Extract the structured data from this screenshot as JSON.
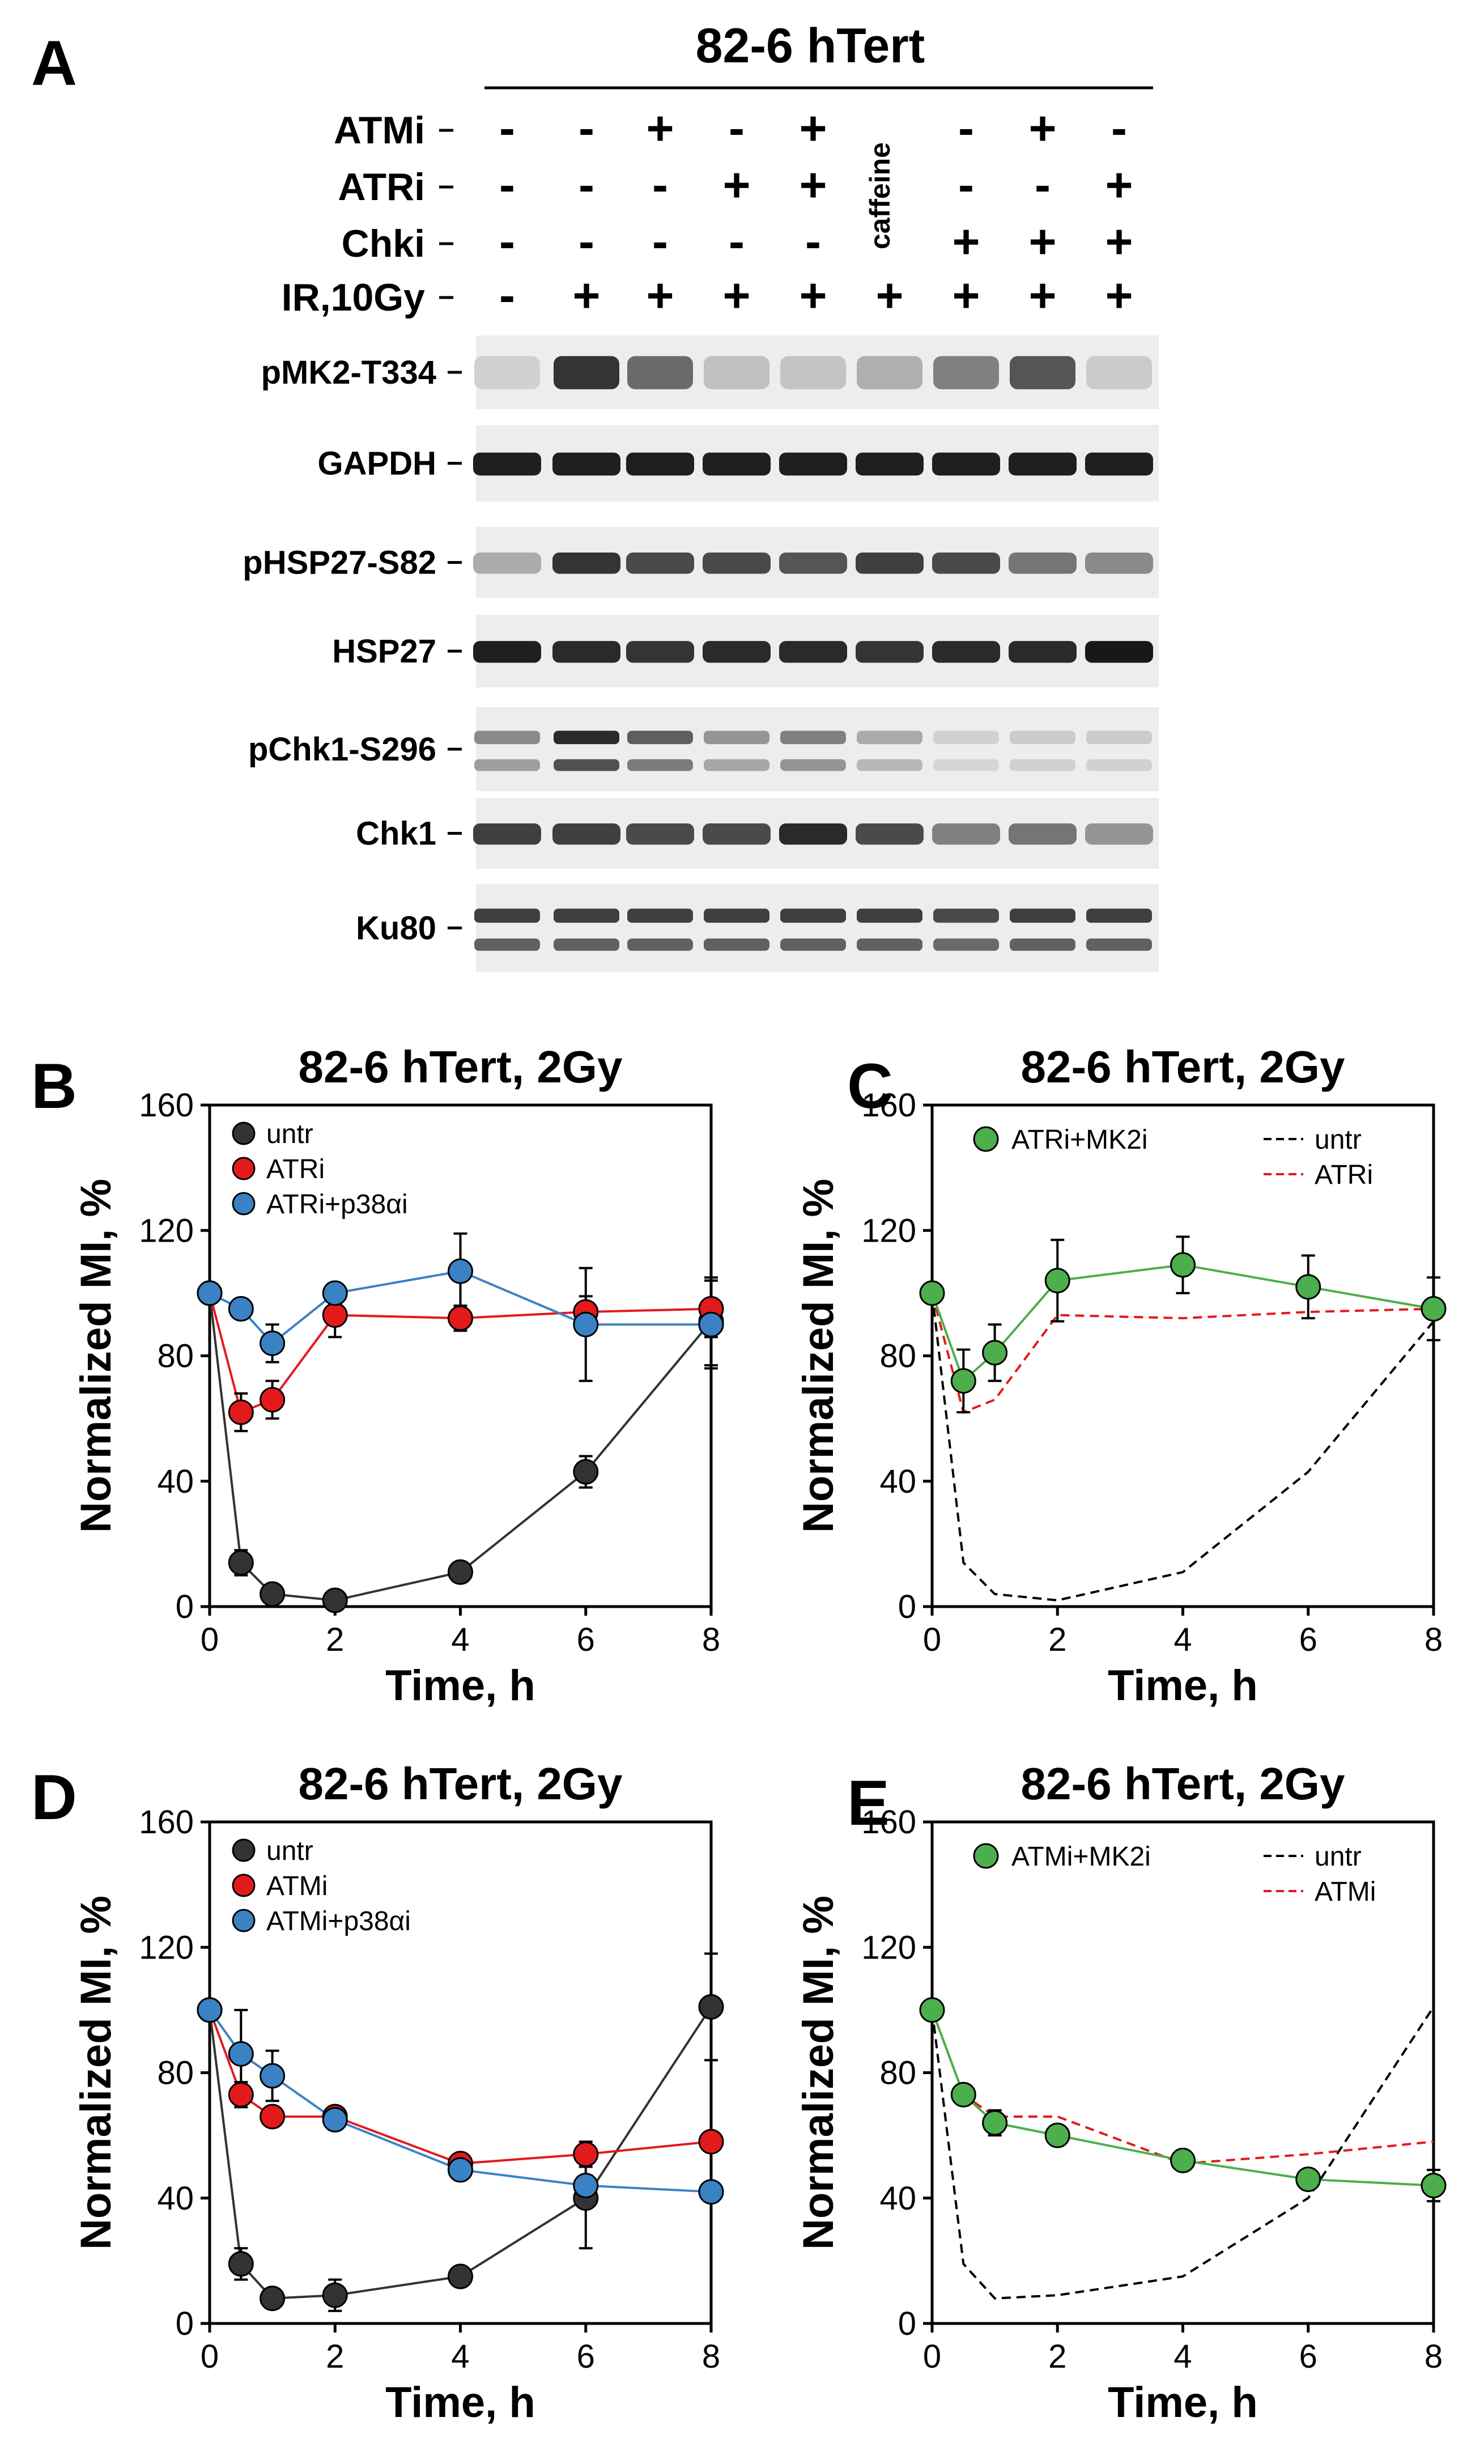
{
  "panel_a": {
    "letter": "A",
    "cell_line": "82-6 hTert",
    "treatment_rows": [
      {
        "label": "ATMi",
        "values": [
          "-",
          "-",
          "+",
          "-",
          "+",
          "",
          "-",
          "+",
          "-"
        ]
      },
      {
        "label": "ATRi",
        "values": [
          "-",
          "-",
          "-",
          "+",
          "+",
          "",
          "-",
          "-",
          "+"
        ]
      },
      {
        "label": "Chki",
        "values": [
          "-",
          "-",
          "-",
          "-",
          "-",
          "",
          "+",
          "+",
          "+"
        ]
      },
      {
        "label": "IR,10Gy",
        "values": [
          "-",
          "+",
          "+",
          "+",
          "+",
          "+",
          "+",
          "+",
          "+"
        ]
      }
    ],
    "caffeine_label": "caffeine",
    "blots": [
      {
        "label": "pMK2-T334",
        "intensity": [
          0.12,
          0.85,
          0.6,
          0.2,
          0.18,
          0.28,
          0.5,
          0.7,
          0.15
        ],
        "style": "diffuse"
      },
      {
        "label": "GAPDH",
        "intensity": [
          0.95,
          0.95,
          0.95,
          0.95,
          0.95,
          0.95,
          0.95,
          0.95,
          0.95
        ],
        "style": "solid"
      },
      {
        "label": "pHSP27-S82",
        "intensity": [
          0.3,
          0.85,
          0.75,
          0.75,
          0.7,
          0.8,
          0.75,
          0.55,
          0.45
        ],
        "style": "solid"
      },
      {
        "label": "HSP27",
        "intensity": [
          0.95,
          0.9,
          0.85,
          0.9,
          0.9,
          0.85,
          0.9,
          0.9,
          0.98
        ],
        "style": "solid"
      },
      {
        "label": "pChk1-S296",
        "intensity": [
          0.45,
          0.9,
          0.65,
          0.4,
          0.5,
          0.3,
          0.12,
          0.15,
          0.15
        ],
        "style": "double"
      },
      {
        "label": "Chk1",
        "intensity": [
          0.8,
          0.8,
          0.75,
          0.75,
          0.9,
          0.75,
          0.5,
          0.55,
          0.4
        ],
        "style": "solid"
      },
      {
        "label": "Ku80",
        "intensity": [
          0.8,
          0.8,
          0.8,
          0.8,
          0.8,
          0.8,
          0.75,
          0.8,
          0.8
        ],
        "style": "double"
      }
    ]
  },
  "chart_data": [
    {
      "panel": "B",
      "type": "line",
      "title": "82-6 hTert, 2Gy",
      "xlabel": "Time, h",
      "ylabel": "Normalized MI, %",
      "xlim": [
        0,
        8
      ],
      "ylim": [
        0,
        160
      ],
      "xticks": [
        0,
        2,
        4,
        6,
        8
      ],
      "yticks": [
        0,
        40,
        80,
        120,
        160
      ],
      "legend_position": "top-left",
      "series": [
        {
          "name": "untr",
          "color": "#333333",
          "style": "marker",
          "x": [
            0,
            0.5,
            1,
            2,
            4,
            6,
            8
          ],
          "y": [
            100,
            14,
            4,
            2,
            11,
            43,
            91
          ],
          "err": [
            0,
            4,
            2,
            1,
            2,
            5,
            14
          ]
        },
        {
          "name": "ATRi",
          "color": "#e31a1c",
          "style": "marker",
          "x": [
            0,
            0.5,
            1,
            2,
            4,
            6,
            8
          ],
          "y": [
            100,
            62,
            66,
            93,
            92,
            94,
            95
          ],
          "err": [
            0,
            6,
            6,
            7,
            4,
            5,
            9
          ]
        },
        {
          "name": "ATRi+p38αi",
          "color": "#3a82c4",
          "style": "marker",
          "x": [
            0,
            0.5,
            1,
            2,
            4,
            6,
            8
          ],
          "y": [
            100,
            95,
            84,
            100,
            107,
            90,
            90
          ],
          "err": [
            0,
            0,
            6,
            0,
            12,
            18,
            14
          ]
        }
      ]
    },
    {
      "panel": "C",
      "type": "line",
      "title": "82-6 hTert, 2Gy",
      "xlabel": "Time, h",
      "ylabel": "Normalized MI, %",
      "xlim": [
        0,
        8
      ],
      "ylim": [
        0,
        160
      ],
      "xticks": [
        0,
        2,
        4,
        6,
        8
      ],
      "yticks": [
        0,
        40,
        80,
        120,
        160
      ],
      "legend_position": "top",
      "series": [
        {
          "name": "ATRi+MK2i",
          "color": "#4cae4c",
          "style": "marker",
          "x": [
            0,
            0.5,
            1,
            2,
            4,
            6,
            8
          ],
          "y": [
            100,
            72,
            81,
            104,
            109,
            102,
            95
          ],
          "err": [
            0,
            10,
            9,
            13,
            9,
            10,
            10
          ]
        },
        {
          "name": "untr",
          "color": "#000000",
          "style": "dashed",
          "x": [
            0,
            0.5,
            1,
            2,
            4,
            6,
            8
          ],
          "y": [
            100,
            14,
            4,
            2,
            11,
            43,
            91
          ]
        },
        {
          "name": "ATRi",
          "color": "#e31a1c",
          "style": "dashed",
          "x": [
            0,
            0.5,
            1,
            2,
            4,
            6,
            8
          ],
          "y": [
            100,
            62,
            66,
            93,
            92,
            94,
            95
          ]
        }
      ]
    },
    {
      "panel": "D",
      "type": "line",
      "title": "82-6 hTert, 2Gy",
      "xlabel": "Time, h",
      "ylabel": "Normalized MI, %",
      "xlim": [
        0,
        8
      ],
      "ylim": [
        0,
        160
      ],
      "xticks": [
        0,
        2,
        4,
        6,
        8
      ],
      "yticks": [
        0,
        40,
        80,
        120,
        160
      ],
      "legend_position": "top-left",
      "series": [
        {
          "name": "untr",
          "color": "#333333",
          "style": "marker",
          "x": [
            0,
            0.5,
            1,
            2,
            4,
            6,
            8
          ],
          "y": [
            100,
            19,
            8,
            9,
            15,
            40,
            101
          ],
          "err": [
            0,
            5,
            2,
            5,
            3,
            16,
            17
          ]
        },
        {
          "name": "ATMi",
          "color": "#e31a1c",
          "style": "marker",
          "x": [
            0,
            0.5,
            1,
            2,
            4,
            6,
            8
          ],
          "y": [
            100,
            73,
            66,
            66,
            51,
            54,
            58
          ],
          "err": [
            0,
            4,
            3,
            3,
            2,
            4,
            3
          ]
        },
        {
          "name": "ATMi+p38αi",
          "color": "#3a82c4",
          "style": "marker",
          "x": [
            0,
            0.5,
            1,
            2,
            4,
            6,
            8
          ],
          "y": [
            100,
            86,
            79,
            65,
            49,
            44,
            42
          ],
          "err": [
            0,
            14,
            8,
            3,
            3,
            2,
            2
          ]
        }
      ]
    },
    {
      "panel": "E",
      "type": "line",
      "title": "82-6 hTert, 2Gy",
      "xlabel": "Time, h",
      "ylabel": "Normalized MI, %",
      "xlim": [
        0,
        8
      ],
      "ylim": [
        0,
        160
      ],
      "xticks": [
        0,
        2,
        4,
        6,
        8
      ],
      "yticks": [
        0,
        40,
        80,
        120,
        160
      ],
      "legend_position": "top",
      "series": [
        {
          "name": "ATMi+MK2i",
          "color": "#4cae4c",
          "style": "marker",
          "x": [
            0,
            0.5,
            1,
            2,
            4,
            6,
            8
          ],
          "y": [
            100,
            73,
            64,
            60,
            52,
            46,
            44
          ],
          "err": [
            0,
            3,
            4,
            3,
            2,
            3,
            5
          ]
        },
        {
          "name": "untr",
          "color": "#000000",
          "style": "dashed",
          "x": [
            0,
            0.5,
            1,
            2,
            4,
            6,
            8
          ],
          "y": [
            100,
            19,
            8,
            9,
            15,
            40,
            101
          ]
        },
        {
          "name": "ATMi",
          "color": "#e31a1c",
          "style": "dashed",
          "x": [
            0,
            0.5,
            1,
            2,
            4,
            6,
            8
          ],
          "y": [
            100,
            73,
            66,
            66,
            51,
            54,
            58
          ]
        }
      ]
    }
  ]
}
